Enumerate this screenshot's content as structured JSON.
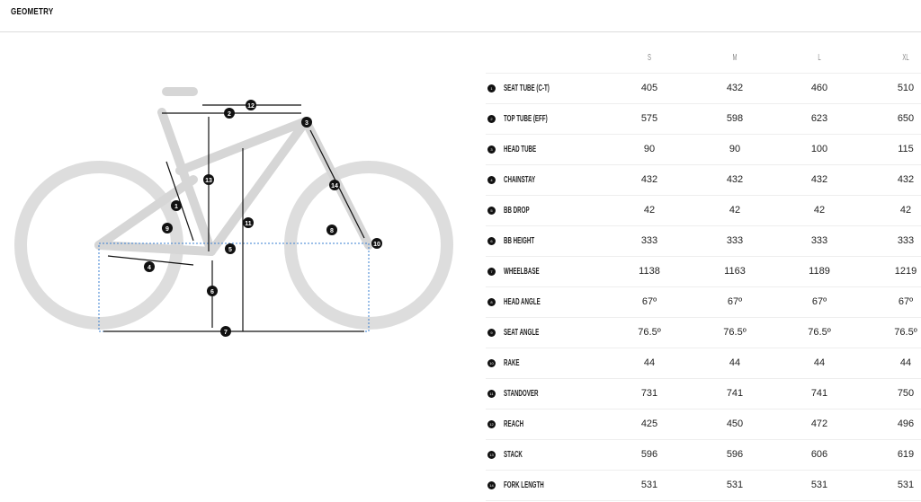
{
  "title": "GEOMETRY",
  "sizes": [
    "S",
    "M",
    "L",
    "XL"
  ],
  "rows": [
    {
      "n": "1",
      "label": "SEAT TUBE (C-T)",
      "values": [
        "405",
        "432",
        "460",
        "510"
      ]
    },
    {
      "n": "2",
      "label": "TOP TUBE (EFF)",
      "values": [
        "575",
        "598",
        "623",
        "650"
      ]
    },
    {
      "n": "3",
      "label": "HEAD TUBE",
      "values": [
        "90",
        "90",
        "100",
        "115"
      ]
    },
    {
      "n": "4",
      "label": "CHAINSTAY",
      "values": [
        "432",
        "432",
        "432",
        "432"
      ]
    },
    {
      "n": "5",
      "label": "BB DROP",
      "values": [
        "42",
        "42",
        "42",
        "42"
      ]
    },
    {
      "n": "6",
      "label": "BB HEIGHT",
      "values": [
        "333",
        "333",
        "333",
        "333"
      ]
    },
    {
      "n": "7",
      "label": "WHEELBASE",
      "values": [
        "1138",
        "1163",
        "1189",
        "1219"
      ]
    },
    {
      "n": "8",
      "label": "HEAD ANGLE",
      "values": [
        "67º",
        "67º",
        "67º",
        "67º"
      ]
    },
    {
      "n": "9",
      "label": "SEAT ANGLE",
      "values": [
        "76.5º",
        "76.5º",
        "76.5º",
        "76.5º"
      ]
    },
    {
      "n": "10",
      "label": "RAKE",
      "values": [
        "44",
        "44",
        "44",
        "44"
      ]
    },
    {
      "n": "11",
      "label": "STANDOVER",
      "values": [
        "731",
        "741",
        "741",
        "750"
      ]
    },
    {
      "n": "12",
      "label": "REACH",
      "values": [
        "425",
        "450",
        "472",
        "496"
      ]
    },
    {
      "n": "13",
      "label": "STACK",
      "values": [
        "596",
        "596",
        "606",
        "619"
      ]
    },
    {
      "n": "14",
      "label": "FORK LENGTH",
      "values": [
        "531",
        "531",
        "531",
        "531"
      ]
    }
  ]
}
